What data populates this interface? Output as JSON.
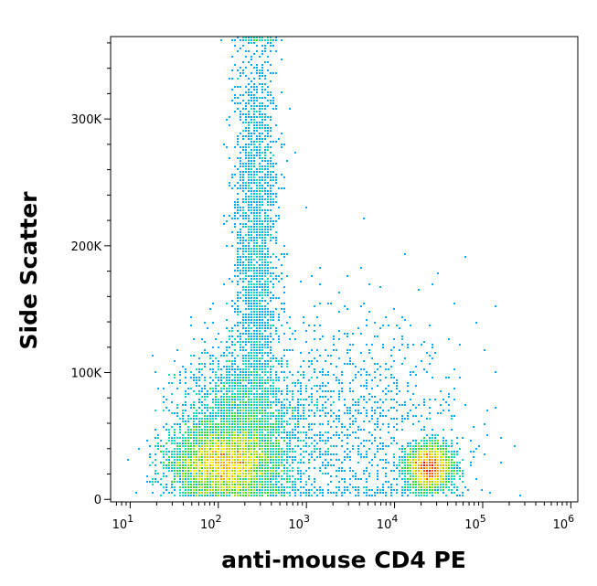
{
  "chart_data": {
    "type": "scatter",
    "subtype": "flow cytometry density dot plot",
    "xlabel": "anti-mouse CD4 PE",
    "ylabel": "Side Scatter",
    "x_scale": "log",
    "xlim": [
      6,
      1200000
    ],
    "ylim": [
      -2000,
      365000
    ],
    "x_ticks": [
      {
        "value": 10,
        "base": "10",
        "exp": "1"
      },
      {
        "value": 100,
        "base": "10",
        "exp": "2"
      },
      {
        "value": 1000,
        "base": "10",
        "exp": "3"
      },
      {
        "value": 10000,
        "base": "10",
        "exp": "4"
      },
      {
        "value": 100000,
        "base": "10",
        "exp": "5"
      },
      {
        "value": 1000000,
        "base": "10",
        "exp": "6"
      }
    ],
    "y_ticks": [
      {
        "value": 0,
        "label": "0"
      },
      {
        "value": 100000,
        "label": "100K"
      },
      {
        "value": 200000,
        "label": "200K"
      },
      {
        "value": 300000,
        "label": "300K"
      }
    ],
    "grid": false,
    "legend": "none",
    "color_scale": [
      "#0000ff",
      "#00aaff",
      "#00e0c0",
      "#33dd33",
      "#aadd00",
      "#ffee00",
      "#ffaa00",
      "#ff5500",
      "#ee0000"
    ],
    "populations": [
      {
        "name_hint": "CD4-negative lymphocytes",
        "x_center": 110,
        "y_center": 28000,
        "x_spread_decades": 0.28,
        "y_spread": 13000,
        "density": 1.0
      },
      {
        "name_hint": "CD4-negative broad cloud",
        "x_center": 180,
        "y_center": 55000,
        "x_spread_decades": 0.35,
        "y_spread": 30000,
        "density": 0.55
      },
      {
        "name_hint": "high side scatter column",
        "x_center": 270,
        "y_center": 200000,
        "x_spread_decades": 0.12,
        "y_spread": 90000,
        "density": 0.25
      },
      {
        "name_hint": "CD4-positive cells",
        "x_center": 25000,
        "y_center": 25000,
        "x_spread_decades": 0.13,
        "y_spread": 9000,
        "density": 0.6
      },
      {
        "name_hint": "intermediate scatter",
        "x_center": 2500,
        "y_center": 60000,
        "x_spread_decades": 0.7,
        "y_spread": 45000,
        "density": 0.12
      }
    ]
  }
}
